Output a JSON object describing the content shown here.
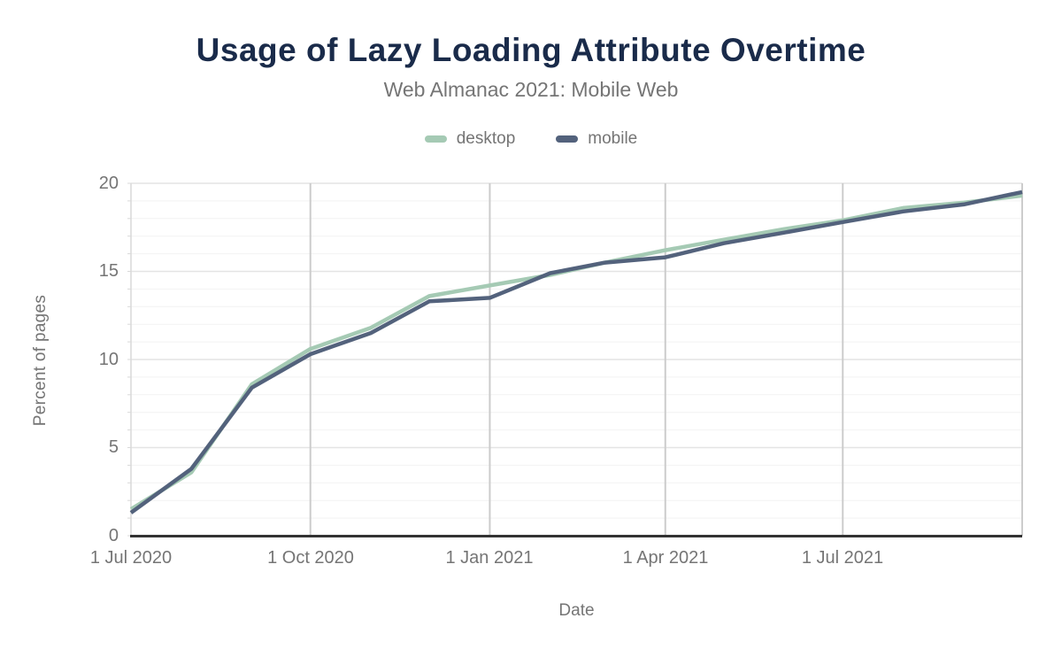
{
  "chart_data": {
    "type": "line",
    "title": "Usage of Lazy Loading Attribute Overtime",
    "subtitle": "Web Almanac 2021: Mobile Web",
    "xlabel": "Date",
    "ylabel": "Percent of pages",
    "grid": "on",
    "legend_position": "top",
    "ylim": [
      0,
      20
    ],
    "yticks": [
      0,
      5,
      10,
      15,
      20
    ],
    "y_minor_step": 1,
    "x": [
      "1 Jul 2020",
      "1 Aug 2020",
      "1 Sep 2020",
      "1 Oct 2020",
      "1 Nov 2020",
      "1 Dec 2020",
      "1 Jan 2021",
      "1 Feb 2021",
      "1 Mar 2021",
      "1 Apr 2021",
      "1 May 2021",
      "1 Jun 2021",
      "1 Jul 2021",
      "1 Aug 2021",
      "1 Sep 2021",
      "1 Oct 2021"
    ],
    "x_days": [
      0,
      31,
      62,
      92,
      123,
      153,
      184,
      215,
      243,
      274,
      304,
      335,
      365,
      396,
      427,
      457
    ],
    "xlim_days": [
      0,
      457
    ],
    "xtick_labels": [
      "1 Jul 2020",
      "1 Oct 2020",
      "1 Jan 2021",
      "1 Apr 2021",
      "1 Jul 2021"
    ],
    "xtick_days": [
      0,
      92,
      184,
      274,
      365
    ],
    "vgrid_days": [
      92,
      184,
      274,
      365,
      457
    ],
    "series": [
      {
        "name": "desktop",
        "color": "#a5cab4",
        "values": [
          1.5,
          3.6,
          8.6,
          10.6,
          11.8,
          13.6,
          14.2,
          14.8,
          15.5,
          16.2,
          16.8,
          17.4,
          17.9,
          18.6,
          18.9,
          19.3
        ]
      },
      {
        "name": "mobile",
        "color": "#53627c",
        "values": [
          1.3,
          3.8,
          8.4,
          10.3,
          11.5,
          13.3,
          13.5,
          14.9,
          15.5,
          15.8,
          16.6,
          17.2,
          17.8,
          18.4,
          18.8,
          19.5
        ]
      }
    ]
  }
}
